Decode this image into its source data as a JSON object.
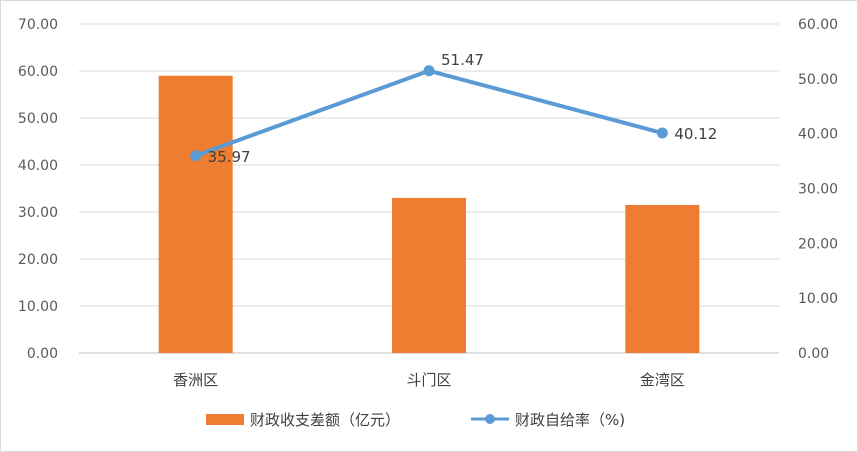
{
  "chart_data": {
    "type": "bar",
    "categories": [
      "香洲区",
      "斗门区",
      "金湾区"
    ],
    "series": [
      {
        "name": "财政收支差额（亿元）",
        "type": "bar",
        "axis": "left",
        "values": [
          59.0,
          33.0,
          31.5
        ],
        "color": "#ED7D31"
      },
      {
        "name": "财政自给率（%)",
        "type": "line",
        "axis": "right",
        "values": [
          35.97,
          51.47,
          40.12
        ],
        "data_labels": [
          "35.97",
          "51.47",
          "40.12"
        ],
        "color": "#5B9BD5"
      }
    ],
    "y_left": {
      "ylim": [
        0,
        70
      ],
      "ticks": [
        0,
        10,
        20,
        30,
        40,
        50,
        60,
        70
      ],
      "tick_labels": [
        "0.00",
        "10.00",
        "20.00",
        "30.00",
        "40.00",
        "50.00",
        "60.00",
        "70.00"
      ]
    },
    "y_right": {
      "ylim": [
        0,
        60
      ],
      "ticks": [
        0,
        10,
        20,
        30,
        40,
        50,
        60
      ],
      "tick_labels": [
        "0.00",
        "10.00",
        "20.00",
        "30.00",
        "40.00",
        "50.00",
        "60.00"
      ]
    },
    "grid": true,
    "legend_position": "bottom"
  }
}
